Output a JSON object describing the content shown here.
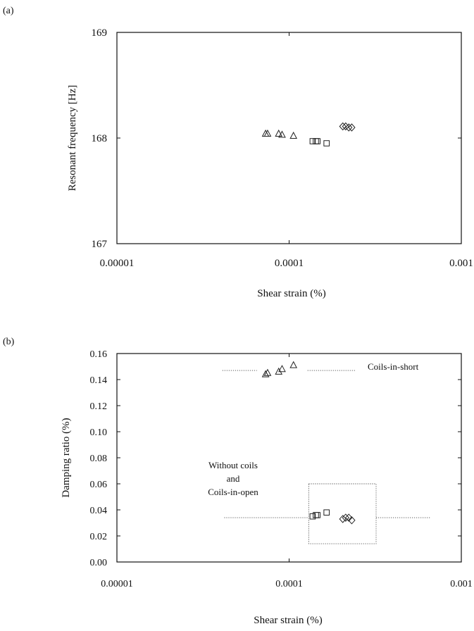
{
  "chart_data": [
    {
      "panel_label": "(a)",
      "type": "scatter",
      "xscale": "log",
      "xlim": [
        1e-05,
        0.001
      ],
      "ylim": [
        167,
        169
      ],
      "xlabel": "Shear strain (%)",
      "ylabel": "Resonant frequency [Hz]",
      "xticks": [
        1e-05,
        0.0001,
        0.001
      ],
      "xtick_labels": [
        "0.00001",
        "0.0001",
        "0.001"
      ],
      "yticks": [
        167,
        168,
        169
      ],
      "ytick_labels": [
        "167",
        "168",
        "169"
      ],
      "grid": false,
      "series": [
        {
          "marker": "triangle",
          "points": [
            [
              7.3e-05,
              168.04
            ],
            [
              7.5e-05,
              168.04
            ],
            [
              8.7e-05,
              168.04
            ],
            [
              9.1e-05,
              168.03
            ],
            [
              0.000106,
              168.02
            ]
          ]
        },
        {
          "marker": "square",
          "points": [
            [
              0.000137,
              167.97
            ],
            [
              0.000143,
              167.97
            ],
            [
              0.000146,
              167.97
            ],
            [
              0.000165,
              167.95
            ]
          ]
        },
        {
          "marker": "diamond",
          "points": [
            [
              0.000205,
              168.11
            ],
            [
              0.000213,
              168.11
            ],
            [
              0.000222,
              168.1
            ],
            [
              0.000231,
              168.1
            ]
          ]
        }
      ]
    },
    {
      "panel_label": "(b)",
      "type": "scatter",
      "xscale": "log",
      "xlim": [
        1e-05,
        0.001
      ],
      "ylim": [
        0.0,
        0.16
      ],
      "xlabel": "Shear strain (%)",
      "ylabel": "Damping ratio (%)",
      "xticks": [
        1e-05,
        0.0001,
        0.001
      ],
      "xtick_labels": [
        "0.00001",
        "0.0001",
        "0.001"
      ],
      "yticks": [
        0,
        0.02,
        0.04,
        0.06,
        0.08,
        0.1,
        0.12,
        0.14,
        0.16
      ],
      "ytick_labels": [
        "0.00",
        "0.02",
        "0.04",
        "0.06",
        "0.08",
        "0.10",
        "0.12",
        "0.14",
        "0.16"
      ],
      "grid": false,
      "series": [
        {
          "marker": "triangle",
          "points": [
            [
              7.3e-05,
              0.144
            ],
            [
              7.5e-05,
              0.145
            ],
            [
              8.7e-05,
              0.146
            ],
            [
              9.1e-05,
              0.148
            ],
            [
              0.000106,
              0.151
            ]
          ]
        },
        {
          "marker": "square",
          "points": [
            [
              0.000137,
              0.035
            ],
            [
              0.000143,
              0.036
            ],
            [
              0.000146,
              0.036
            ],
            [
              0.000165,
              0.038
            ]
          ]
        },
        {
          "marker": "diamond",
          "points": [
            [
              0.000205,
              0.033
            ],
            [
              0.000213,
              0.034
            ],
            [
              0.000222,
              0.034
            ],
            [
              0.000231,
              0.032
            ]
          ]
        }
      ],
      "annotations": [
        {
          "text": "Coils-in-short",
          "y": 0.147,
          "x_from": 4.1e-05,
          "x_to": 0.00066,
          "gap": [
            6.5e-05,
            0.000128
          ]
        },
        {
          "lines": [
            "Without coils",
            "and",
            "Coils-in-open"
          ],
          "y": 0.034,
          "x_from": 4.2e-05,
          "x_to": 0.00066,
          "box": {
            "x": [
              0.00013,
              0.00032
            ],
            "y": [
              0.014,
              0.06
            ]
          }
        }
      ]
    }
  ]
}
